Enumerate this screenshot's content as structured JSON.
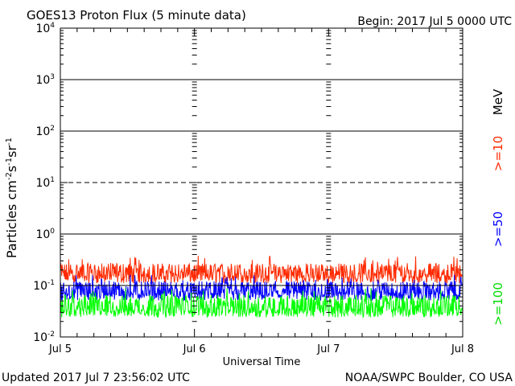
{
  "chart_data": {
    "type": "line",
    "title": "GOES13 Proton Flux (5 minute data)",
    "begin_label": "Begin: 2017 Jul 5 0000 UTC",
    "xlabel": "Universal Time",
    "ylabel_main": "Particles cm",
    "ylabel_exp1": "-2",
    "ylabel_mid1": "s",
    "ylabel_exp2": "-1",
    "ylabel_mid2": "sr",
    "ylabel_exp3": "-1",
    "x_unit": "days since Jul 5 00:00 UTC",
    "xlim": [
      0,
      3
    ],
    "x_ticks": [
      {
        "value": 0,
        "label": "Jul 5"
      },
      {
        "value": 1,
        "label": "Jul 6"
      },
      {
        "value": 2,
        "label": "Jul 7"
      },
      {
        "value": 3,
        "label": "Jul 8"
      }
    ],
    "y_scale": "log",
    "ylim": [
      0.01,
      10000
    ],
    "y_ticks": [
      {
        "value": 10000,
        "base": "10",
        "exp": "4"
      },
      {
        "value": 1000,
        "base": "10",
        "exp": "3"
      },
      {
        "value": 100,
        "base": "10",
        "exp": "2"
      },
      {
        "value": 10,
        "base": "10",
        "exp": "1"
      },
      {
        "value": 1,
        "base": "10",
        "exp": "0"
      },
      {
        "value": 0.1,
        "base": "10",
        "exp": "-1"
      },
      {
        "value": 0.01,
        "base": "10",
        "exp": "-2"
      }
    ],
    "thresholds": [
      {
        "value": 1000,
        "style": "solid"
      },
      {
        "value": 100,
        "style": "solid"
      },
      {
        "value": 10,
        "style": "dashed"
      },
      {
        "value": 1,
        "style": "solid"
      },
      {
        "value": 0.1,
        "style": "solid"
      }
    ],
    "units_label": "MeV",
    "series": [
      {
        "name": ">=10",
        "color": "#ff2a00",
        "baseline": 0.16,
        "noise_low": 0.11,
        "noise_high": 0.27,
        "spike_max": 0.38
      },
      {
        "name": ">=50",
        "color": "#0000ff",
        "baseline": 0.072,
        "noise_low": 0.05,
        "noise_high": 0.12,
        "spike_max": 0.17
      },
      {
        "name": ">=100",
        "color": "#00ff00",
        "baseline": 0.035,
        "noise_low": 0.024,
        "noise_high": 0.065,
        "spike_max": 0.09
      }
    ],
    "grid": false
  },
  "footer": {
    "updated": "Updated 2017 Jul  7 23:56:02 UTC",
    "credit": "NOAA/SWPC Boulder, CO USA"
  }
}
